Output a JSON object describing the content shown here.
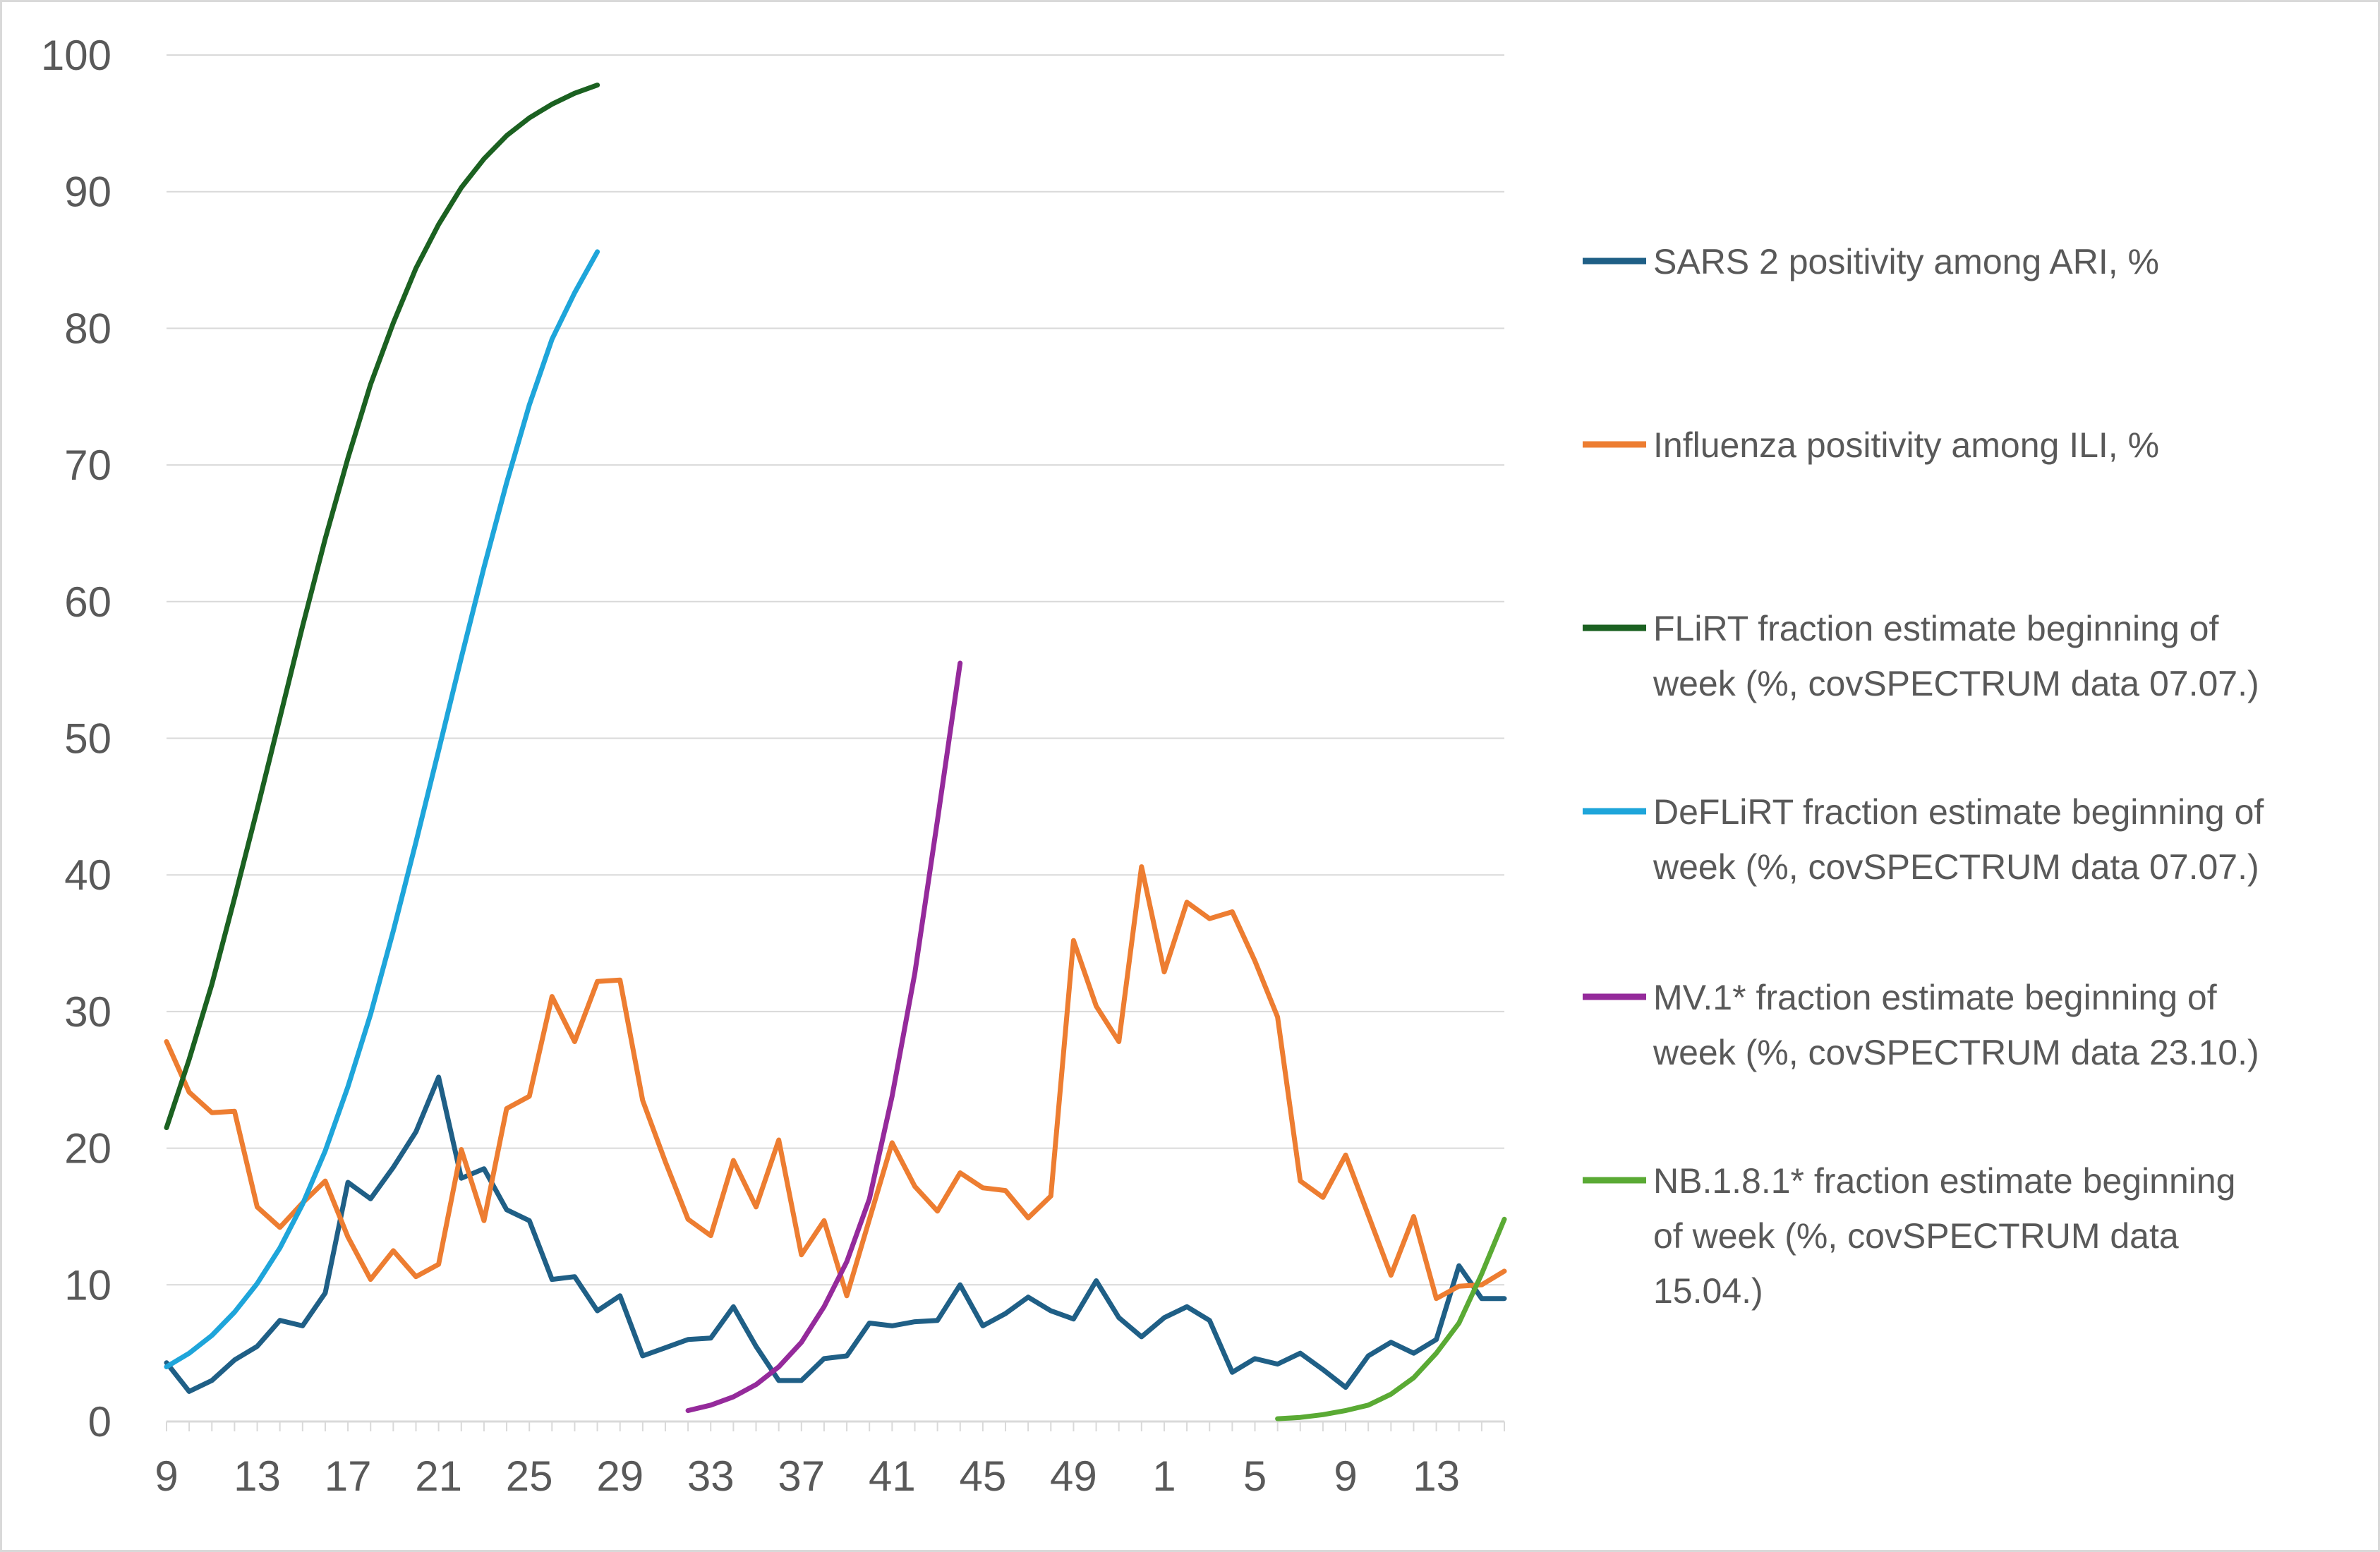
{
  "chart_data": {
    "type": "line",
    "title": "",
    "xlabel": "",
    "ylabel": "",
    "ylim": [
      0,
      100
    ],
    "y_ticks": [
      "0",
      "10",
      "20",
      "30",
      "40",
      "50",
      "60",
      "70",
      "80",
      "90",
      "100"
    ],
    "x_categories": [
      "9",
      "10",
      "11",
      "12",
      "13",
      "14",
      "15",
      "16",
      "17",
      "18",
      "19",
      "20",
      "21",
      "22",
      "23",
      "24",
      "25",
      "26",
      "27",
      "28",
      "29",
      "30",
      "31",
      "32",
      "33",
      "34",
      "35",
      "36",
      "37",
      "38",
      "39",
      "40",
      "41",
      "42",
      "43",
      "44",
      "45",
      "46",
      "47",
      "48",
      "49",
      "50",
      "51",
      "52",
      "1",
      "2",
      "3",
      "4",
      "5",
      "6",
      "7",
      "8",
      "9",
      "10",
      "11",
      "12",
      "13",
      "14",
      "15",
      "16"
    ],
    "x_tick_labels": [
      {
        "category_index": 0,
        "label": "9"
      },
      {
        "category_index": 4,
        "label": "13"
      },
      {
        "category_index": 8,
        "label": "17"
      },
      {
        "category_index": 12,
        "label": "21"
      },
      {
        "category_index": 16,
        "label": "25"
      },
      {
        "category_index": 20,
        "label": "29"
      },
      {
        "category_index": 24,
        "label": "33"
      },
      {
        "category_index": 28,
        "label": "37"
      },
      {
        "category_index": 32,
        "label": "41"
      },
      {
        "category_index": 36,
        "label": "45"
      },
      {
        "category_index": 40,
        "label": "49"
      },
      {
        "category_index": 44,
        "label": "1"
      },
      {
        "category_index": 48,
        "label": "5"
      },
      {
        "category_index": 52,
        "label": "9"
      },
      {
        "category_index": 56,
        "label": "13"
      }
    ],
    "grid": true,
    "legend_position": "right",
    "series": [
      {
        "name": "SARS 2 positivity among ARI, %",
        "color": "#1f5f86",
        "start_index": 0,
        "values": [
          4.3,
          2.2,
          3.0,
          4.5,
          5.5,
          7.4,
          7.0,
          9.4,
          17.5,
          16.3,
          18.6,
          21.2,
          25.2,
          17.8,
          18.5,
          15.5,
          14.7,
          10.4,
          10.6,
          8.1,
          9.2,
          4.8,
          5.4,
          6.0,
          6.1,
          8.4,
          5.5,
          3.0,
          3.0,
          4.6,
          4.8,
          7.2,
          7.0,
          7.3,
          7.4,
          10.0,
          7.0,
          7.9,
          9.1,
          8.1,
          7.5,
          10.3,
          7.6,
          6.2,
          7.6,
          8.4,
          7.4,
          3.6,
          4.6,
          4.2,
          5.0,
          3.8,
          2.5,
          4.8,
          5.8,
          5.0,
          6.0,
          11.4,
          9.0,
          9.0
        ]
      },
      {
        "name": "Influenza positivity among ILI, %",
        "color": "#ed7d31",
        "start_index": 0,
        "values": [
          27.8,
          24.1,
          22.6,
          22.7,
          15.7,
          14.2,
          16.0,
          17.6,
          13.5,
          10.4,
          12.5,
          10.6,
          11.5,
          19.9,
          14.7,
          22.9,
          23.8,
          31.1,
          27.8,
          32.2,
          32.3,
          23.5,
          19.0,
          14.8,
          13.6,
          19.1,
          15.7,
          20.6,
          12.2,
          14.7,
          9.2,
          14.8,
          20.4,
          17.2,
          15.4,
          18.2,
          17.1,
          16.9,
          14.9,
          16.5,
          35.2,
          30.4,
          27.8,
          40.6,
          32.9,
          38.0,
          36.8,
          37.3,
          33.7,
          29.6,
          17.6,
          16.4,
          19.5,
          15.1,
          10.7,
          15.0,
          9.0,
          9.9,
          10.0,
          11.0
        ]
      },
      {
        "name": "FLiRT fraction estimate beginning of week (%, covSPECTRUM data 07.07.)",
        "color": "#1b6121",
        "start_index": 0,
        "values": [
          21.5,
          26.5,
          32.0,
          38.3,
          44.8,
          51.5,
          58.2,
          64.6,
          70.5,
          75.9,
          80.4,
          84.4,
          87.6,
          90.3,
          92.4,
          94.1,
          95.4,
          96.4,
          97.2,
          97.8
        ]
      },
      {
        "name": "DeFLiRT fraction estimate beginning of week (%, covSPECTRUM data 07.07.)",
        "color": "#1ea5da",
        "start_index": 0,
        "values": [
          4.0,
          5.0,
          6.3,
          8.0,
          10.1,
          12.7,
          15.9,
          19.8,
          24.5,
          29.8,
          35.9,
          42.4,
          49.1,
          55.9,
          62.5,
          68.7,
          74.4,
          79.2,
          82.6,
          85.6
        ]
      },
      {
        "name": "MV.1* fraction estimate beginning of week (%, covSPECTRUM data 23.10.)",
        "color": "#952a9b",
        "start_index": 23,
        "values": [
          0.8,
          1.2,
          1.8,
          2.7,
          4.0,
          5.8,
          8.4,
          11.7,
          16.3,
          23.8,
          32.8,
          44.0,
          55.5
        ]
      },
      {
        "name": "NB.1.8.1* fraction estimate beginning of week (%, covSPECTRUM data 15.04.)",
        "color": "#5aaa34",
        "start_index": 49,
        "values": [
          0.2,
          0.3,
          0.5,
          0.8,
          1.2,
          2.0,
          3.2,
          5.0,
          7.2,
          10.8,
          14.8
        ]
      }
    ]
  },
  "legend": {
    "items": [
      {
        "lines": [
          "SARS 2 positivity among ARI, %"
        ],
        "color": "#1f5f86"
      },
      {
        "lines": [
          "Influenza positivity among ILI, %"
        ],
        "color": "#ed7d31"
      },
      {
        "lines": [
          "FLiRT fraction estimate beginning of",
          "week (%, covSPECTRUM data 07.07.)"
        ],
        "color": "#1b6121"
      },
      {
        "lines": [
          "DeFLiRT fraction estimate beginning of",
          "week (%, covSPECTRUM data 07.07.)"
        ],
        "color": "#1ea5da"
      },
      {
        "lines": [
          "MV.1* fraction estimate beginning of",
          "week (%, covSPECTRUM data 23.10.)"
        ],
        "color": "#952a9b"
      },
      {
        "lines": [
          "NB.1.8.1* fraction estimate beginning",
          "of week (%, covSPECTRUM data",
          "15.04.)"
        ],
        "color": "#5aaa34"
      }
    ]
  }
}
